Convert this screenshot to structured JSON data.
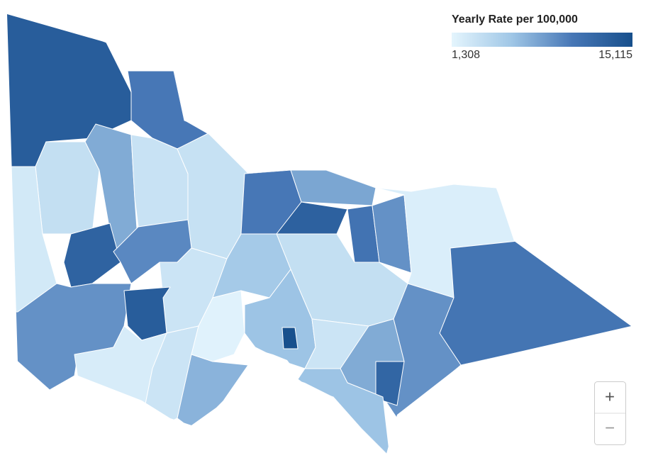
{
  "map": {
    "legend_title": "Yearly Rate per 100,000",
    "scale": {
      "min": {
        "value": 1308,
        "label": "1,308"
      },
      "max": {
        "value": 15115,
        "label": "15,115"
      },
      "colors": [
        "#e4f5fd",
        "#9fc6e6",
        "#4777b6",
        "#174f8c"
      ]
    },
    "region_values": [
      13500,
      10500,
      3500,
      2500,
      7500,
      3200,
      3300,
      12800,
      9500,
      10500,
      7800,
      13000,
      11000,
      9000,
      2000,
      10800,
      9000,
      3500,
      3000,
      5500,
      9000,
      13500,
      2200,
      3000,
      7000,
      1600,
      6000,
      15000,
      3000,
      7500,
      12500,
      6000
    ],
    "zoom_in": "+",
    "zoom_out": "−"
  }
}
